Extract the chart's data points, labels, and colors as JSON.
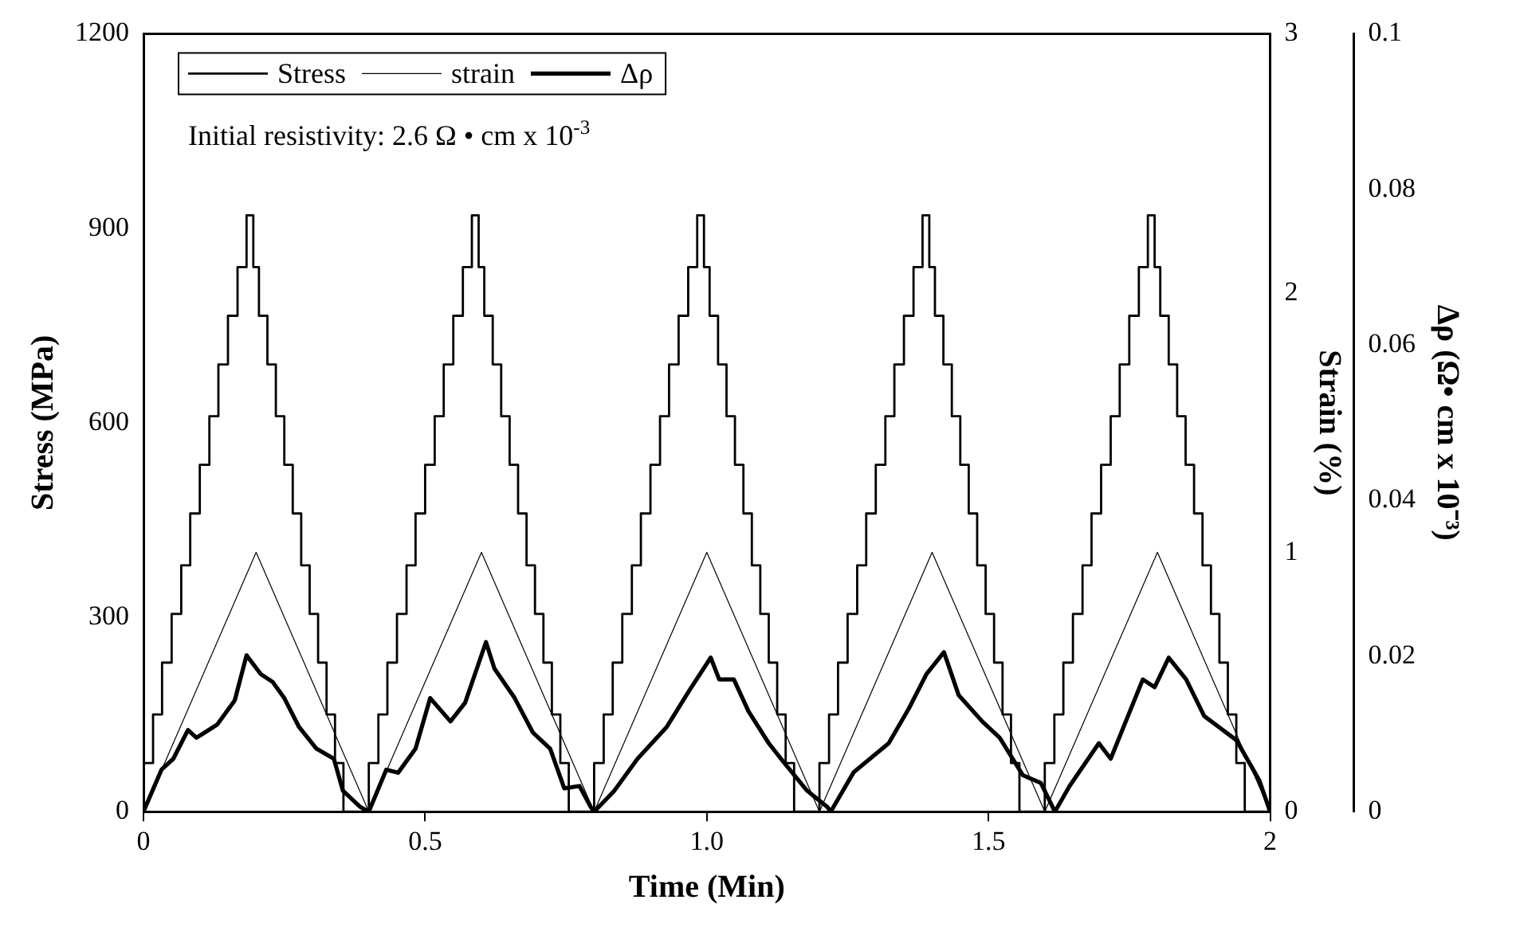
{
  "chart_data": {
    "type": "line",
    "xlabel": "Time (Min)",
    "ylabel": "Stress (MPa)",
    "y2label": "Strain (%)",
    "y3label": "Δρ (Ω• cm x 10⁻³)",
    "xlim": [
      0,
      2
    ],
    "xticks": [
      0,
      0.5,
      {
        "value": 1,
        "label": "1.0"
      },
      1.5,
      2
    ],
    "ylim": [
      0,
      1200
    ],
    "yticks": [
      0,
      300,
      600,
      900,
      1200
    ],
    "y2lim": [
      0,
      3
    ],
    "y2ticks": [
      0,
      1,
      2,
      3
    ],
    "y3lim": [
      0,
      0.1
    ],
    "y3ticks": [
      0,
      0.02,
      0.04,
      0.06,
      0.08,
      0.1
    ],
    "grid": false,
    "legend": "top left",
    "marker": "none",
    "line_style": "solid",
    "annotations": [
      "Initial resistivity: 2.6 Ω • cm x 10$^{-3}$"
    ],
    "series": [
      {
        "name": "Stress",
        "type": "step",
        "color": "#000000",
        "x": [
          0,
          0.017,
          0.033,
          0.05,
          0.067,
          0.083,
          0.1,
          0.117,
          0.133,
          0.15,
          0.167,
          0.183,
          0.195,
          0.205,
          0.22,
          0.235,
          0.25,
          0.265,
          0.28,
          0.295,
          0.31,
          0.325,
          0.34,
          0.355,
          0.37,
          0.4,
          0.417,
          0.433,
          0.45,
          0.467,
          0.483,
          0.5,
          0.517,
          0.533,
          0.55,
          0.567,
          0.583,
          0.595,
          0.605,
          0.62,
          0.635,
          0.65,
          0.665,
          0.68,
          0.695,
          0.71,
          0.725,
          0.74,
          0.755,
          0.77,
          0.8,
          0.817,
          0.833,
          0.85,
          0.867,
          0.883,
          0.9,
          0.917,
          0.933,
          0.95,
          0.967,
          0.983,
          0.995,
          1.005,
          1.02,
          1.035,
          1.05,
          1.065,
          1.08,
          1.095,
          1.11,
          1.125,
          1.14,
          1.155,
          1.17,
          1.2,
          1.217,
          1.233,
          1.25,
          1.267,
          1.283,
          1.3,
          1.317,
          1.333,
          1.35,
          1.367,
          1.383,
          1.395,
          1.405,
          1.42,
          1.435,
          1.45,
          1.465,
          1.48,
          1.495,
          1.51,
          1.525,
          1.54,
          1.555,
          1.57,
          1.6,
          1.617,
          1.633,
          1.65,
          1.667,
          1.683,
          1.7,
          1.717,
          1.733,
          1.75,
          1.767,
          1.783,
          1.795,
          1.805,
          1.82,
          1.835,
          1.85,
          1.865,
          1.88,
          1.895,
          1.91,
          1.925,
          1.94,
          1.955,
          1.97,
          2.0
        ],
        "values": [
          0,
          75,
          150,
          230,
          305,
          380,
          460,
          535,
          610,
          690,
          765,
          840,
          920,
          840,
          765,
          690,
          610,
          535,
          460,
          380,
          305,
          230,
          150,
          75,
          0,
          0,
          75,
          150,
          230,
          305,
          380,
          460,
          535,
          610,
          690,
          765,
          840,
          920,
          840,
          765,
          690,
          610,
          535,
          460,
          380,
          305,
          230,
          150,
          75,
          0,
          0,
          75,
          150,
          230,
          305,
          380,
          460,
          535,
          610,
          690,
          765,
          840,
          920,
          840,
          765,
          690,
          610,
          535,
          460,
          380,
          305,
          230,
          150,
          75,
          0,
          0,
          75,
          150,
          230,
          305,
          380,
          460,
          535,
          610,
          690,
          765,
          840,
          920,
          840,
          765,
          690,
          610,
          535,
          460,
          380,
          305,
          230,
          150,
          75,
          0,
          0,
          75,
          150,
          230,
          305,
          380,
          460,
          535,
          610,
          690,
          765,
          840,
          920,
          840,
          765,
          690,
          610,
          535,
          460,
          380,
          305,
          230,
          150,
          75,
          0,
          0
        ]
      },
      {
        "name": "strain",
        "axis": "y2",
        "color": "#000000",
        "x": [
          0,
          0.2,
          0.4,
          0.6,
          0.8,
          1.0,
          1.2,
          1.4,
          1.6,
          1.8,
          2.0
        ],
        "values": [
          0,
          1,
          0,
          1,
          0,
          1,
          0,
          1,
          0,
          1,
          0
        ]
      },
      {
        "name": "Δρ",
        "axis": "y3",
        "color": "#000000",
        "x": [
          0,
          0.032,
          0.053,
          0.079,
          0.094,
          0.131,
          0.162,
          0.183,
          0.208,
          0.229,
          0.25,
          0.276,
          0.307,
          0.338,
          0.354,
          0.385,
          0.4,
          0.431,
          0.452,
          0.483,
          0.509,
          0.545,
          0.571,
          0.608,
          0.623,
          0.659,
          0.691,
          0.722,
          0.747,
          0.774,
          0.794,
          0.8,
          0.836,
          0.877,
          0.929,
          0.97,
          1.007,
          1.022,
          1.048,
          1.074,
          1.11,
          1.136,
          1.178,
          1.214,
          1.22,
          1.261,
          1.323,
          1.359,
          1.39,
          1.421,
          1.447,
          1.489,
          1.52,
          1.561,
          1.593,
          1.618,
          1.644,
          1.696,
          1.717,
          1.774,
          1.795,
          1.82,
          1.851,
          1.883,
          1.94,
          1.981,
          2.0
        ],
        "values": [
          0,
          0.0054,
          0.0068,
          0.0105,
          0.0095,
          0.0112,
          0.0143,
          0.0201,
          0.0177,
          0.0167,
          0.0146,
          0.0109,
          0.0081,
          0.0068,
          0.0027,
          0.0006,
          0,
          0.0054,
          0.005,
          0.0081,
          0.0146,
          0.0116,
          0.014,
          0.0218,
          0.0184,
          0.0146,
          0.0102,
          0.0081,
          0.003,
          0.0033,
          0.0006,
          0,
          0.0027,
          0.0068,
          0.0109,
          0.0157,
          0.0198,
          0.017,
          0.017,
          0.0129,
          0.0088,
          0.0064,
          0.0027,
          0.0006,
          0,
          0.0051,
          0.0088,
          0.0133,
          0.0177,
          0.0205,
          0.015,
          0.0116,
          0.0095,
          0.0047,
          0.0037,
          0,
          0.0033,
          0.0088,
          0.0068,
          0.017,
          0.016,
          0.0198,
          0.017,
          0.0123,
          0.0092,
          0.004,
          0
        ]
      }
    ]
  }
}
